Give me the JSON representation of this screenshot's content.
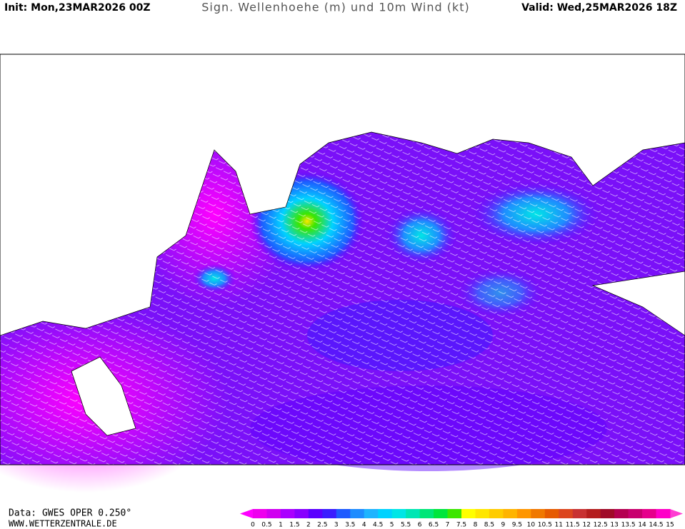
{
  "header": {
    "init": "Init: Mon,23MAR2026 00Z",
    "title": "Sign. Wellenhoehe (m) und 10m Wind (kt)",
    "valid": "Valid: Wed,25MAR2026 18Z"
  },
  "footer": {
    "data": "Data: GWES OPER 0.250°",
    "site": "WWW.WETTERZENTRALE.DE"
  },
  "legend": {
    "ticks": [
      0,
      0.5,
      1,
      1.5,
      2,
      2.5,
      3,
      3.5,
      4,
      4.5,
      5,
      5.5,
      6,
      6.5,
      7,
      7.5,
      8,
      8.5,
      9,
      9.5,
      10,
      10.5,
      11,
      11.5,
      12,
      12.5,
      13,
      13.5,
      14,
      14.5,
      15
    ],
    "colors": [
      "#ee00ee",
      "#d000f0",
      "#aa00ff",
      "#8800ff",
      "#5a00ff",
      "#3a1cff",
      "#1e5aff",
      "#1e8cff",
      "#1eb4ff",
      "#00d2ff",
      "#00e6e6",
      "#00e6b4",
      "#00e678",
      "#00e63c",
      "#3ce600",
      "#ffff00",
      "#ffe600",
      "#ffcc00",
      "#ffb400",
      "#ff9600",
      "#f07800",
      "#e65a00",
      "#dc461e",
      "#c83232",
      "#b41e1e",
      "#a00a28",
      "#b40050",
      "#c8006e",
      "#e6008c",
      "#ff00c8"
    ],
    "low_color": "#ff00ff",
    "high_color": "#ff3cd2"
  }
}
